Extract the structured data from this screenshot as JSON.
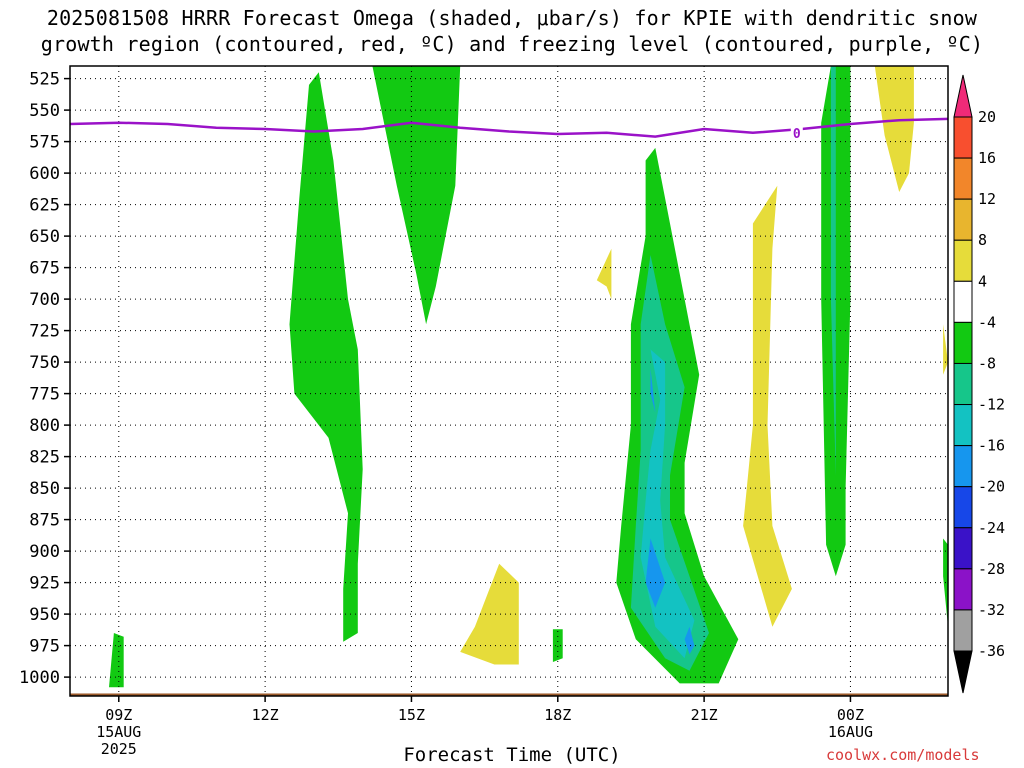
{
  "title_line1": "2025081508 HRRR Forecast Omega (shaded, μbar/s) for KPIE with dendritic snow",
  "title_line2": "growth region (contoured, red, ºC) and freezing level (contoured, purple, ºC)",
  "credit": "coolwx.com/models",
  "chart_data": {
    "type": "heatmap",
    "title": "2025081508 HRRR Forecast Omega (shaded, μbar/s) for KPIE with dendritic snow growth region (contoured, red, ºC) and freezing level (contoured, purple, ºC)",
    "xlabel": "Forecast Time (UTC)",
    "ylabel": "",
    "x_range_hours_utc": [
      8.0,
      26.0
    ],
    "y_range_hPa": [
      1015,
      515
    ],
    "y_axis_inverted": true,
    "grid": true,
    "x_ticks": [
      {
        "hour": 9,
        "label": "09Z",
        "sub1": "15AUG",
        "sub2": "2025"
      },
      {
        "hour": 12,
        "label": "12Z",
        "sub1": "",
        "sub2": ""
      },
      {
        "hour": 15,
        "label": "15Z",
        "sub1": "",
        "sub2": ""
      },
      {
        "hour": 18,
        "label": "18Z",
        "sub1": "",
        "sub2": ""
      },
      {
        "hour": 21,
        "label": "21Z",
        "sub1": "",
        "sub2": ""
      },
      {
        "hour": 24,
        "label": "00Z",
        "sub1": "16AUG",
        "sub2": ""
      }
    ],
    "y_ticks": [
      525,
      550,
      575,
      600,
      625,
      650,
      675,
      700,
      725,
      750,
      775,
      800,
      825,
      850,
      875,
      900,
      925,
      950,
      975,
      1000
    ],
    "colorbar": {
      "levels": [
        "20",
        "16",
        "12",
        "8",
        "4",
        "-4",
        "-8",
        "-12",
        "-16",
        "-20",
        "-24",
        "-28",
        "-32",
        "-36"
      ],
      "colors": [
        "#f02a78",
        "#f84f2f",
        "#f2862a",
        "#e8b52e",
        "#e6dc3a",
        "#ffffff",
        "#12c912",
        "#16c68a",
        "#13c2c2",
        "#1696ee",
        "#1747e8",
        "#3a12c8",
        "#8b12c8",
        "#a0a0a0",
        "#000000"
      ]
    },
    "freezing_level": {
      "label": "0",
      "color": "#9a12c8",
      "x": [
        8.0,
        9.0,
        10.0,
        11.0,
        12.0,
        13.0,
        14.0,
        15.0,
        16.0,
        17.0,
        18.0,
        19.0,
        20.0,
        21.0,
        22.0,
        23.0,
        24.0,
        25.0,
        26.0
      ],
      "y": [
        561,
        560,
        561,
        564,
        565,
        567,
        565,
        560,
        564,
        567,
        569,
        568,
        571,
        565,
        568,
        565,
        561,
        558,
        557
      ]
    },
    "terrain_hPa": 1013,
    "shaded_regions": [
      {
        "name": "omega -4 to -8",
        "color": "#12c912",
        "points": [
          [
            8.8,
            1008
          ],
          [
            8.9,
            965
          ],
          [
            9.1,
            968
          ],
          [
            9.1,
            1008
          ]
        ]
      },
      {
        "name": "omega -4 to -8",
        "color": "#12c912",
        "points": [
          [
            12.9,
            530
          ],
          [
            13.1,
            520
          ],
          [
            13.4,
            590
          ],
          [
            13.7,
            700
          ],
          [
            13.9,
            740
          ],
          [
            14.0,
            835
          ],
          [
            13.9,
            910
          ],
          [
            13.9,
            965
          ],
          [
            13.6,
            972
          ],
          [
            13.6,
            930
          ],
          [
            13.7,
            870
          ],
          [
            13.3,
            810
          ],
          [
            12.6,
            775
          ],
          [
            12.5,
            720
          ],
          [
            12.7,
            620
          ]
        ]
      },
      {
        "name": "omega -4 to -8",
        "color": "#12c912",
        "points": [
          [
            14.2,
            515
          ],
          [
            16.0,
            515
          ],
          [
            15.9,
            610
          ],
          [
            15.5,
            690
          ],
          [
            15.3,
            720
          ],
          [
            15.1,
            680
          ],
          [
            14.7,
            610
          ]
        ]
      },
      {
        "name": "omega -4 to -8",
        "color": "#12c912",
        "points": [
          [
            17.9,
            962
          ],
          [
            18.1,
            962
          ],
          [
            18.1,
            985
          ],
          [
            17.9,
            988
          ]
        ]
      },
      {
        "name": "omega -4 to -8",
        "color": "#12c912",
        "points": [
          [
            19.8,
            590
          ],
          [
            20.0,
            580
          ],
          [
            20.3,
            640
          ],
          [
            20.6,
            700
          ],
          [
            20.9,
            760
          ],
          [
            20.6,
            830
          ],
          [
            20.6,
            870
          ],
          [
            21.0,
            920
          ],
          [
            21.7,
            970
          ],
          [
            21.3,
            1005
          ],
          [
            20.5,
            1005
          ],
          [
            19.6,
            970
          ],
          [
            19.2,
            925
          ],
          [
            19.3,
            880
          ],
          [
            19.5,
            800
          ],
          [
            19.5,
            720
          ],
          [
            19.8,
            650
          ]
        ]
      },
      {
        "name": "omega -8 to -12",
        "color": "#16c68a",
        "points": [
          [
            19.9,
            665
          ],
          [
            20.2,
            720
          ],
          [
            20.6,
            770
          ],
          [
            20.3,
            840
          ],
          [
            20.3,
            875
          ],
          [
            20.7,
            920
          ],
          [
            21.1,
            965
          ],
          [
            20.7,
            995
          ],
          [
            20.2,
            985
          ],
          [
            19.5,
            945
          ],
          [
            19.6,
            880
          ],
          [
            19.7,
            820
          ],
          [
            19.7,
            720
          ]
        ]
      },
      {
        "name": "omega -12 to -16",
        "color": "#13c2c2",
        "points": [
          [
            19.9,
            740
          ],
          [
            20.1,
            780
          ],
          [
            19.9,
            820
          ],
          [
            19.8,
            860
          ],
          [
            19.7,
            905
          ],
          [
            20.0,
            960
          ],
          [
            20.6,
            985
          ],
          [
            20.8,
            955
          ],
          [
            20.2,
            905
          ],
          [
            20.1,
            860
          ],
          [
            20.2,
            800
          ],
          [
            20.2,
            750
          ]
        ]
      },
      {
        "name": "omega -16 to -20",
        "color": "#1696ee",
        "points": [
          [
            19.9,
            755
          ],
          [
            20.0,
            790
          ],
          [
            19.9,
            775
          ]
        ]
      },
      {
        "name": "omega -16 to -20",
        "color": "#1696ee",
        "points": [
          [
            19.9,
            890
          ],
          [
            20.2,
            925
          ],
          [
            20.0,
            945
          ],
          [
            19.8,
            925
          ]
        ]
      },
      {
        "name": "omega -16 to -20",
        "color": "#1696ee",
        "points": [
          [
            20.7,
            960
          ],
          [
            20.8,
            975
          ],
          [
            20.7,
            982
          ],
          [
            20.6,
            970
          ]
        ]
      },
      {
        "name": "omega -4 to -8",
        "color": "#12c912",
        "points": [
          [
            23.6,
            515
          ],
          [
            24.0,
            515
          ],
          [
            24.0,
            700
          ],
          [
            23.9,
            850
          ],
          [
            23.9,
            895
          ],
          [
            23.7,
            920
          ],
          [
            23.5,
            895
          ],
          [
            23.4,
            700
          ],
          [
            23.4,
            560
          ]
        ]
      },
      {
        "name": "omega -8 to -12",
        "color": "#16c68a",
        "points": [
          [
            23.6,
            515
          ],
          [
            23.7,
            515
          ],
          [
            23.7,
            700
          ],
          [
            23.7,
            840
          ],
          [
            23.6,
            700
          ],
          [
            23.6,
            560
          ]
        ]
      },
      {
        "name": "omega 4 to 8",
        "color": "#e6dc3a",
        "points": [
          [
            16.0,
            980
          ],
          [
            16.3,
            960
          ],
          [
            16.8,
            910
          ],
          [
            17.2,
            925
          ],
          [
            17.2,
            990
          ],
          [
            16.7,
            990
          ]
        ]
      },
      {
        "name": "omega 4 to 8",
        "color": "#e6dc3a",
        "points": [
          [
            19.0,
            690
          ],
          [
            18.8,
            685
          ],
          [
            19.1,
            660
          ],
          [
            19.1,
            700
          ]
        ]
      },
      {
        "name": "omega 4 to 8",
        "color": "#e6dc3a",
        "points": [
          [
            22.0,
            640
          ],
          [
            22.5,
            610
          ],
          [
            22.4,
            660
          ],
          [
            22.3,
            800
          ],
          [
            22.4,
            880
          ],
          [
            22.8,
            930
          ],
          [
            22.4,
            960
          ],
          [
            21.8,
            880
          ],
          [
            22.0,
            800
          ]
        ]
      },
      {
        "name": "omega 4 to 8",
        "color": "#e6dc3a",
        "points": [
          [
            24.5,
            515
          ],
          [
            25.3,
            515
          ],
          [
            25.3,
            560
          ],
          [
            25.2,
            600
          ],
          [
            25.0,
            615
          ],
          [
            24.7,
            570
          ]
        ]
      },
      {
        "name": "omega 4 to 8",
        "color": "#e6dc3a",
        "points": [
          [
            25.9,
            720
          ],
          [
            26.0,
            750
          ],
          [
            25.9,
            760
          ]
        ]
      },
      {
        "name": "omega -4 to -8",
        "color": "#12c912",
        "points": [
          [
            25.9,
            890
          ],
          [
            26.0,
            895
          ],
          [
            26.0,
            960
          ],
          [
            25.9,
            920
          ]
        ]
      }
    ]
  }
}
